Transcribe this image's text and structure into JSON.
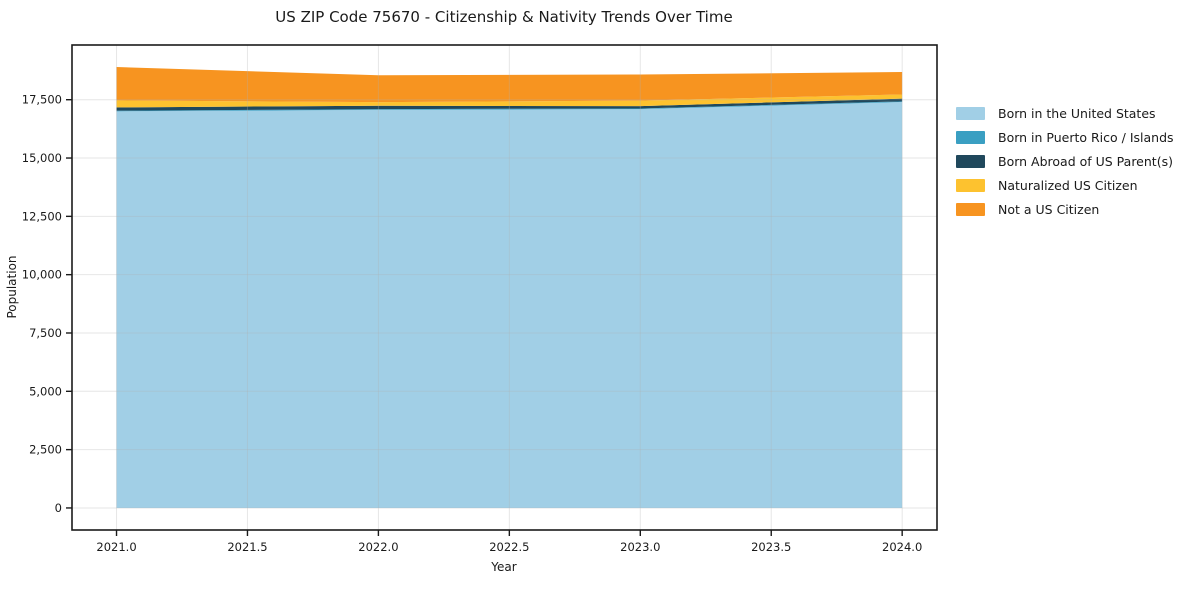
{
  "chart_data": {
    "type": "area",
    "stacked": true,
    "title": "US ZIP Code 75670 - Citizenship & Nativity Trends Over Time",
    "xlabel": "Year",
    "ylabel": "Population",
    "x": [
      2021,
      2022,
      2023,
      2024
    ],
    "series": [
      {
        "name": "Born in the United States",
        "color": "#a1cfe6",
        "values": [
          17000,
          17065,
          17095,
          17400
        ]
      },
      {
        "name": "Born in Puerto Rico / Islands",
        "color": "#3a9fc2",
        "values": [
          30,
          30,
          30,
          30
        ]
      },
      {
        "name": "Born Abroad of US Parent(s)",
        "color": "#20485c",
        "values": [
          140,
          145,
          100,
          115
        ]
      },
      {
        "name": "Naturalized US Citizen",
        "color": "#fdc22f",
        "values": [
          300,
          155,
          235,
          180
        ]
      },
      {
        "name": "Not a US Citizen",
        "color": "#f79420",
        "values": [
          1430,
          1155,
          1120,
          960
        ]
      }
    ],
    "totals_by_year": [
      18900,
      18550,
      18580,
      18685
    ],
    "xticks": {
      "values": [
        2021.0,
        2021.5,
        2022.0,
        2022.5,
        2023.0,
        2023.5,
        2024.0
      ],
      "labels": [
        "2021.0",
        "2021.5",
        "2022.0",
        "2022.5",
        "2023.0",
        "2023.5",
        "2024.0"
      ]
    },
    "yticks": {
      "values": [
        0,
        2500,
        5000,
        7500,
        10000,
        12500,
        15000,
        17500
      ],
      "labels": [
        "0",
        "2,500",
        "5,000",
        "7,500",
        "10,000",
        "12,500",
        "15,000",
        "17,500"
      ]
    },
    "xlim": [
      2020.83,
      2024.133
    ],
    "ylim": [
      -945,
      19845
    ],
    "grid": true,
    "legend_position": "right"
  },
  "style": {
    "grid_color": "#b0b0b0",
    "grid_opacity": 0.3,
    "spine_color": "#1a1a1a",
    "tick_color": "#1a1a1a",
    "text_color": "#1a1a1a",
    "background": "#ffffff"
  }
}
